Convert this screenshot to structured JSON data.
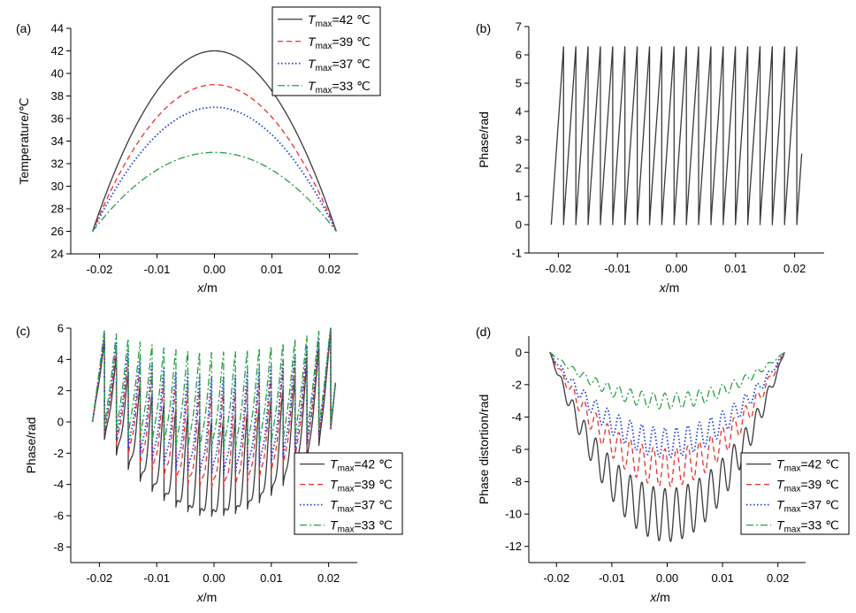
{
  "legend_entries": [
    {
      "prefix": "T",
      "sub": "max",
      "suffix": "=42 ℃",
      "color": "#3a3a3a",
      "dash": "",
      "width": 1.3
    },
    {
      "prefix": "T",
      "sub": "max",
      "suffix": "=39 ℃",
      "color": "#e8302a",
      "dash": "6,4",
      "width": 1.3
    },
    {
      "prefix": "T",
      "sub": "max",
      "suffix": "=37 ℃",
      "color": "#1f3fe0",
      "dash": "1.5,2.5",
      "width": 1.8
    },
    {
      "prefix": "T",
      "sub": "max",
      "suffix": "=33 ℃",
      "color": "#27a043",
      "dash": "8,3,2,3",
      "width": 1.3
    }
  ],
  "chart_data": [
    {
      "panel_label": "(a)",
      "type": "line",
      "xlabel": "x/m",
      "ylabel": "Temperature/℃",
      "xlim": [
        -0.025,
        0.025
      ],
      "ylim": [
        24,
        44
      ],
      "xticks": [
        -0.02,
        -0.01,
        0.0,
        0.01,
        0.02
      ],
      "xticklabels": [
        "-0.02",
        "-0.01",
        "0.00",
        "0.01",
        "0.02"
      ],
      "yticks": [
        24,
        26,
        28,
        30,
        32,
        34,
        36,
        38,
        40,
        42,
        44
      ],
      "yticklabels": [
        "24",
        "26",
        "28",
        "30",
        "32",
        "34",
        "36",
        "38",
        "40",
        "42",
        "44"
      ],
      "legend": "top-right",
      "grid": false,
      "model": "parabola",
      "x_range": [
        -0.0212,
        0.0212
      ],
      "edge_value": 26,
      "series": [
        {
          "name": "Tmax=42 ℃",
          "peak": 42
        },
        {
          "name": "Tmax=39 ℃",
          "peak": 39
        },
        {
          "name": "Tmax=37 ℃",
          "peak": 37
        },
        {
          "name": "Tmax=33 ℃",
          "peak": 33
        }
      ]
    },
    {
      "panel_label": "(b)",
      "type": "line",
      "xlabel": "x/m",
      "ylabel": "Phase/rad",
      "xlim": [
        -0.025,
        0.025
      ],
      "ylim": [
        -1,
        7
      ],
      "xticks": [
        -0.02,
        -0.01,
        0.0,
        0.01,
        0.02
      ],
      "xticklabels": [
        "-0.02",
        "-0.01",
        "0.00",
        "0.01",
        "0.02"
      ],
      "yticks": [
        -1,
        0,
        1,
        2,
        3,
        4,
        5,
        6,
        7
      ],
      "yticklabels": [
        "-1",
        "0",
        "1",
        "2",
        "3",
        "4",
        "5",
        "6",
        "7"
      ],
      "grid": false,
      "model": "wrapped_linear",
      "x_range": [
        -0.0212,
        0.0212
      ],
      "cycles": 20.4,
      "series": [
        {
          "name": "",
          "phase_range": [
            0,
            6.283
          ]
        }
      ]
    },
    {
      "panel_label": "(c)",
      "type": "line",
      "xlabel": "x/m",
      "ylabel": "Phase/rad",
      "xlim": [
        -0.025,
        0.025
      ],
      "ylim": [
        -9,
        6
      ],
      "xticks": [
        -0.02,
        -0.01,
        0.0,
        0.01,
        0.02
      ],
      "xticklabels": [
        "-0.02",
        "-0.01",
        "0.00",
        "0.01",
        "0.02"
      ],
      "yticks": [
        -8,
        -6,
        -4,
        -2,
        0,
        2,
        4,
        6
      ],
      "yticklabels": [
        "-8",
        "-6",
        "-4",
        "-2",
        "0",
        "2",
        "4",
        "6"
      ],
      "legend": "bottom-right",
      "grid": false,
      "model": "wrapped_plus_distortion",
      "x_range": [
        -0.0212,
        0.0212
      ],
      "cycles": 20.4,
      "series": [
        {
          "name": "Tmax=42 ℃",
          "max_distortion": -11.7
        },
        {
          "name": "Tmax=39 ℃",
          "max_distortion": -8.3
        },
        {
          "name": "Tmax=37 ℃",
          "max_distortion": -6.5
        },
        {
          "name": "Tmax=33 ℃",
          "max_distortion": -3.5
        }
      ]
    },
    {
      "panel_label": "(d)",
      "type": "line",
      "xlabel": "x/m",
      "ylabel": "Phase distortion/rad",
      "xlim": [
        -0.025,
        0.025
      ],
      "ylim": [
        -13,
        1
      ],
      "xticks": [
        -0.02,
        -0.01,
        0.0,
        0.01,
        0.02
      ],
      "xticklabels": [
        "-0.02",
        "-0.01",
        "0.00",
        "0.01",
        "0.02"
      ],
      "yticks": [
        -12,
        -10,
        -8,
        -6,
        -4,
        -2,
        0
      ],
      "yticklabels": [
        "-12",
        "-10",
        "-8",
        "-6",
        "-4",
        "-2",
        "0"
      ],
      "legend": "bottom-right",
      "grid": false,
      "model": "scalloped_parabola",
      "x_range": [
        -0.0212,
        0.0212
      ],
      "cycles": 20.4,
      "series": [
        {
          "name": "Tmax=42 ℃",
          "min": -11.7
        },
        {
          "name": "Tmax=39 ℃",
          "min": -8.3
        },
        {
          "name": "Tmax=37 ℃",
          "min": -6.5
        },
        {
          "name": "Tmax=33 ℃",
          "min": -3.5
        }
      ]
    }
  ]
}
